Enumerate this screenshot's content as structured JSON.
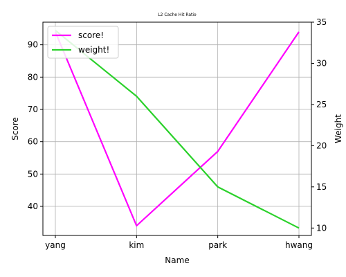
{
  "chart_data": {
    "type": "line",
    "title": "L2 Cache Hit Ratio",
    "xlabel": "Name",
    "ylabel_left": "Score",
    "ylabel_right": "Weight",
    "categories": [
      "yang",
      "kim",
      "park",
      "hwang"
    ],
    "ylim_left": [
      31,
      97
    ],
    "ylim_right": [
      9.1,
      35
    ],
    "yticks_left": [
      40,
      50,
      60,
      70,
      80,
      90
    ],
    "yticks_right": [
      10,
      15,
      20,
      25,
      30,
      35
    ],
    "grid": true,
    "legend_position": "top-left",
    "series": [
      {
        "name": "score!",
        "axis": "left",
        "color": "#ff00ff",
        "values": [
          94,
          34,
          57,
          94
        ]
      },
      {
        "name": "weight!",
        "axis": "right",
        "color": "#2bd12b",
        "values": [
          34,
          26,
          15,
          10
        ]
      }
    ]
  }
}
